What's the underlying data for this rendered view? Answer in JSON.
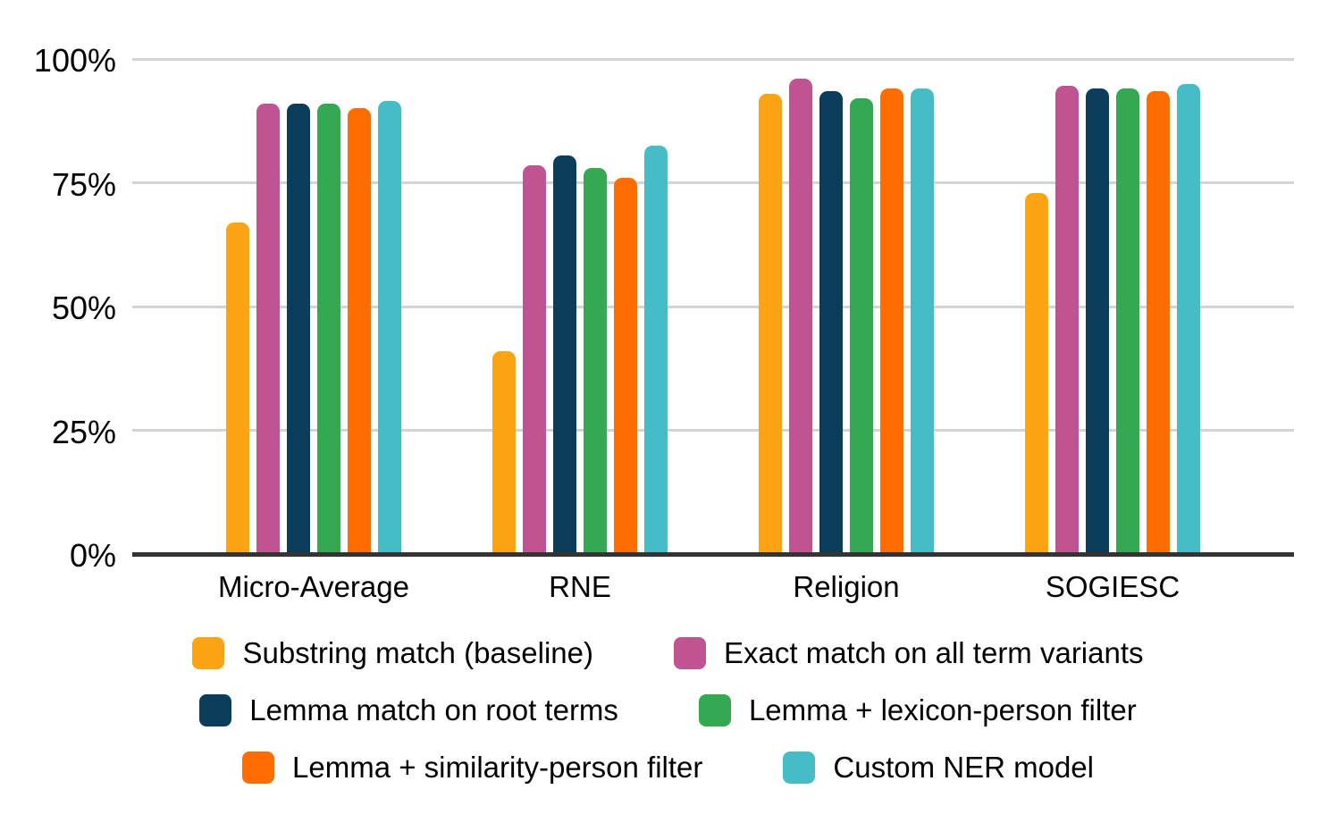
{
  "chart_data": {
    "type": "bar",
    "title": "",
    "xlabel": "",
    "ylabel": "",
    "categories": [
      "Micro-Average",
      "RNE",
      "Religion",
      "SOGIESC"
    ],
    "series": [
      {
        "name": "Substring match (baseline)",
        "color": "#FCA414",
        "values": [
          67,
          41,
          93,
          73
        ]
      },
      {
        "name": "Exact match on all term variants",
        "color": "#C05392",
        "values": [
          91,
          78.5,
          96,
          94.5
        ]
      },
      {
        "name": "Lemma match on root terms",
        "color": "#0A3D5C",
        "values": [
          91,
          80.5,
          93.5,
          94
        ]
      },
      {
        "name": "Lemma + lexicon-person filter",
        "color": "#34A853",
        "values": [
          91,
          78,
          92,
          94
        ]
      },
      {
        "name": "Lemma + similarity-person filter",
        "color": "#FF6D00",
        "values": [
          90,
          76,
          94,
          93.5
        ]
      },
      {
        "name": "Custom NER model",
        "color": "#46BDC6",
        "values": [
          91.5,
          82.5,
          94,
          95
        ]
      }
    ],
    "y_ticks": [
      {
        "label": "100%",
        "value": 100
      },
      {
        "label": "75%",
        "value": 75
      },
      {
        "label": "50%",
        "value": 50
      },
      {
        "label": "25%",
        "value": 25
      },
      {
        "label": "0%",
        "value": 0
      }
    ],
    "ylim": [
      0,
      100
    ],
    "grid": true,
    "legend_position": "bottom",
    "legend_rows": 3,
    "legend_columns": 2,
    "colors": {
      "axis": "#333333",
      "gridline": "#D4D4D4",
      "text": "#000000"
    }
  }
}
